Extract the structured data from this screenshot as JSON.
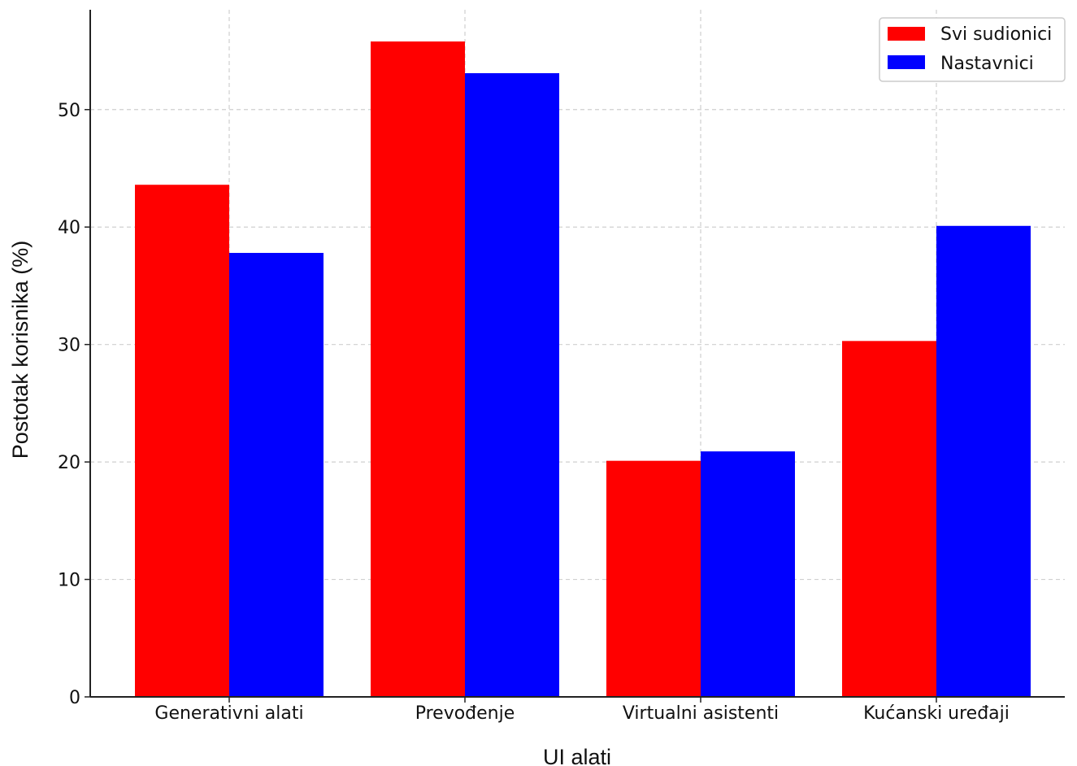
{
  "chart_data": {
    "type": "bar",
    "categories": [
      "Generativni alati",
      "Prevođenje",
      "Virtualni asistenti",
      "Kućanski uređaji"
    ],
    "series": [
      {
        "name": "Svi sudionici",
        "color": "#ff0000",
        "values": [
          43.6,
          55.8,
          20.1,
          30.3
        ]
      },
      {
        "name": "Nastavnici",
        "color": "#0000ff",
        "values": [
          37.8,
          53.1,
          20.9,
          40.1
        ]
      }
    ],
    "title": "",
    "xlabel": "UI alati",
    "ylabel": "Postotak korisnika (%)",
    "ylim": [
      0,
      58.5
    ],
    "yticks": [
      "0",
      "10",
      "20",
      "30",
      "40",
      "50"
    ],
    "grid": true,
    "legend_position": "top-right"
  }
}
